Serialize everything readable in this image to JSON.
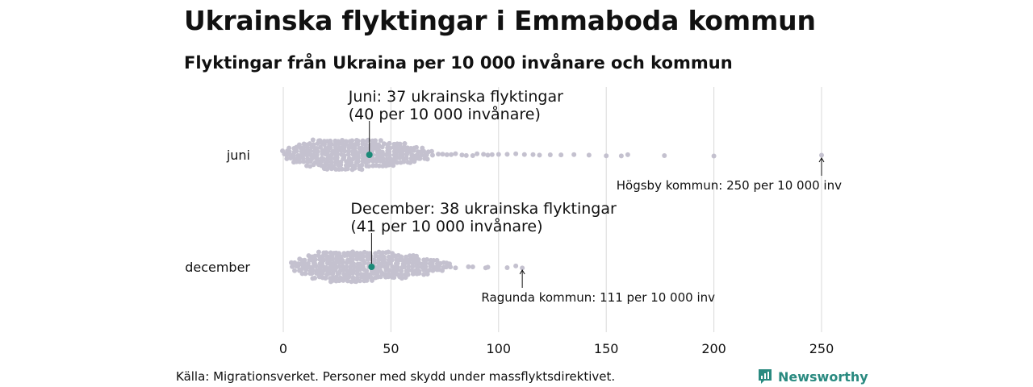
{
  "title": "Ukrainska flyktingar i Emmaboda kommun",
  "subtitle": "Flyktingar från Ukraina per 10 000 invånare och kommun",
  "source": "Källa: Migrationsverket. Personer med skydd under massflyktsdirektivet.",
  "brand": "Newsworthy",
  "colors": {
    "dots": "#c4c1cf",
    "highlight": "#1b8a78",
    "grid": "#d8d8d8",
    "brand": "#2a8a80"
  },
  "chart_data": {
    "type": "scatter",
    "xlim": [
      0,
      250
    ],
    "xticks": [
      0,
      50,
      100,
      150,
      200,
      250
    ],
    "rows": [
      {
        "label": "juni",
        "highlight": {
          "value": 40,
          "line1": "Juni: 37 ukrainska flyktingar",
          "line2": "(40 per 10 000 invånare)"
        },
        "max": {
          "value": 250,
          "label": "Högsby kommun: 250 per 10 000 inv"
        },
        "tail": [
          72,
          74,
          76,
          78,
          80,
          83,
          85,
          88,
          90,
          93,
          95,
          97,
          100,
          104,
          108,
          112,
          116,
          119,
          124,
          129,
          135,
          142,
          150,
          157,
          160,
          177,
          200,
          250
        ]
      },
      {
        "label": "december",
        "highlight": {
          "value": 41,
          "line1": "December: 38 ukrainska flyktingar",
          "line2": "(41 per 10 000 invånare)"
        },
        "max": {
          "value": 111,
          "label": "Ragunda kommun: 111 per 10 000 inv"
        },
        "tail": [
          80,
          86,
          88,
          94,
          95,
          104,
          108,
          111
        ]
      }
    ]
  }
}
